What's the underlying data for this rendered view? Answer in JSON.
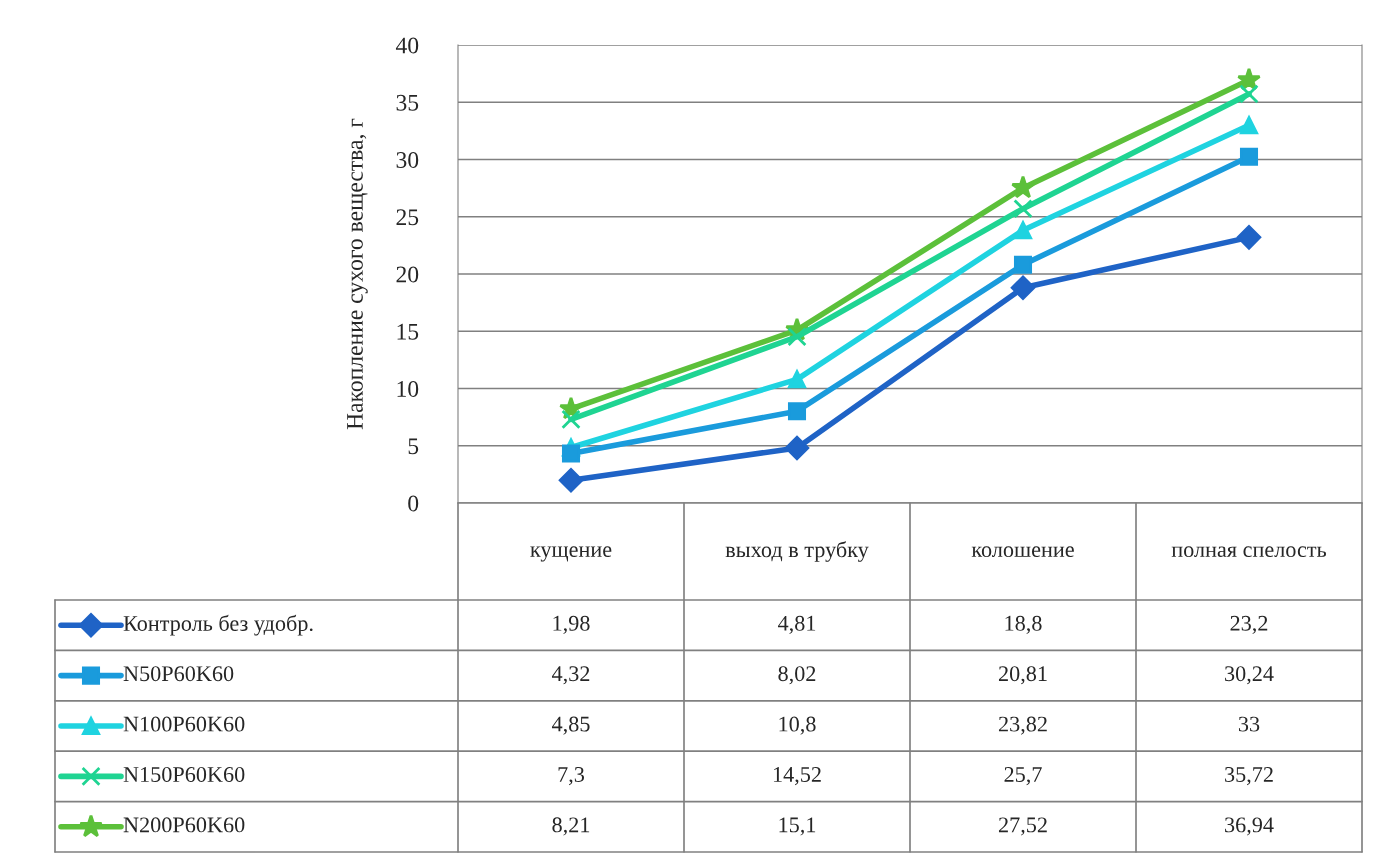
{
  "chart_data": {
    "type": "line",
    "ylabel": "Накопление сухого вещества, г",
    "categories": [
      "кущение",
      "выход в трубку",
      "колошение",
      "полная спелость"
    ],
    "series": [
      {
        "name": "Контроль без удобр.",
        "color": "#1f63c6",
        "marker": "diamond",
        "values": [
          1.98,
          4.81,
          18.8,
          23.2
        ],
        "value_labels": [
          "1,98",
          "4,81",
          "18,8",
          "23,2"
        ]
      },
      {
        "name": "N50P60K60",
        "color": "#1a9bdc",
        "marker": "square",
        "values": [
          4.32,
          8.02,
          20.81,
          30.24
        ],
        "value_labels": [
          "4,32",
          "8,02",
          "20,81",
          "30,24"
        ]
      },
      {
        "name": "N100P60K60",
        "color": "#1fd3e0",
        "marker": "triangle",
        "values": [
          4.85,
          10.8,
          23.82,
          33
        ],
        "value_labels": [
          "4,85",
          "10,8",
          "23,82",
          "33"
        ]
      },
      {
        "name": "N150P60K60",
        "color": "#1fd492",
        "marker": "cross",
        "values": [
          7.3,
          14.52,
          25.7,
          35.72
        ],
        "value_labels": [
          "7,3",
          "14,52",
          "25,7",
          "35,72"
        ]
      },
      {
        "name": "N200P60K60",
        "color": "#5cc03a",
        "marker": "star",
        "values": [
          8.21,
          15.1,
          27.52,
          36.94
        ],
        "value_labels": [
          "8,21",
          "15,1",
          "27,52",
          "36,94"
        ]
      }
    ],
    "ylim": [
      0,
      40
    ],
    "yticks": [
      0,
      5,
      10,
      15,
      20,
      25,
      30,
      35,
      40
    ],
    "grid": "y",
    "legend": "bottom"
  }
}
